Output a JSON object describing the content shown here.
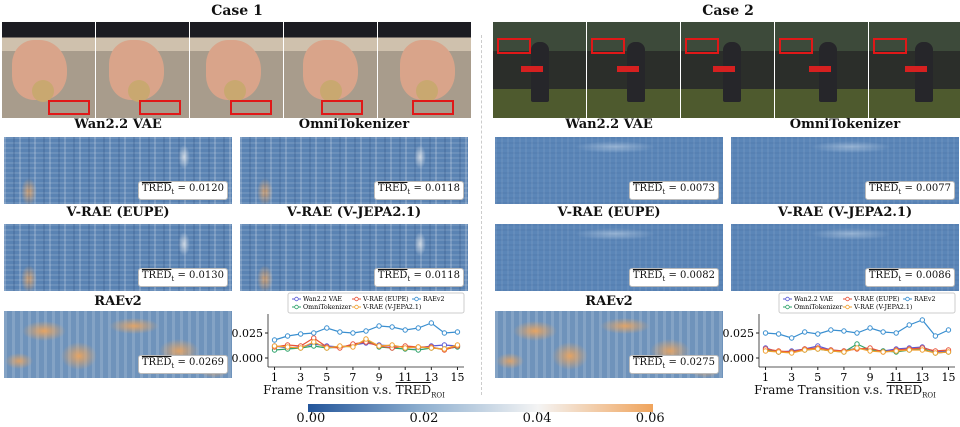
{
  "cases": [
    {
      "title": "Case 1",
      "panels": [
        {
          "title": "Wan2.2 VAE",
          "metric": "TRED",
          "metric_sub": "t",
          "score": "= 0.0120"
        },
        {
          "title": "OmniTokenizer",
          "metric": "TRED",
          "metric_sub": "t",
          "score": "= 0.0118"
        },
        {
          "title": "V-RAE (EUPE)",
          "metric": "TRED",
          "metric_sub": "t",
          "score": "= 0.0130"
        },
        {
          "title": "V-RAE (V-JEPA2.1)",
          "metric": "TRED",
          "metric_sub": "t",
          "score": "= 0.0118"
        },
        {
          "title": "RAEv2",
          "metric": "TRED",
          "metric_sub": "t",
          "score": "= 0.0269"
        }
      ]
    },
    {
      "title": "Case 2",
      "panels": [
        {
          "title": "Wan2.2 VAE",
          "metric": "TRED",
          "metric_sub": "t",
          "score": "= 0.0073"
        },
        {
          "title": "OmniTokenizer",
          "metric": "TRED",
          "metric_sub": "t",
          "score": "= 0.0077"
        },
        {
          "title": "V-RAE (EUPE)",
          "metric": "TRED",
          "metric_sub": "t",
          "score": "= 0.0082"
        },
        {
          "title": "V-RAE (V-JEPA2.1)",
          "metric": "TRED",
          "metric_sub": "t",
          "score": "= 0.0086"
        },
        {
          "title": "RAEv2",
          "metric": "TRED",
          "metric_sub": "t",
          "score": "= 0.0275"
        }
      ]
    }
  ],
  "chart_data": [
    {
      "type": "line",
      "x": [
        1,
        2,
        3,
        4,
        5,
        6,
        7,
        8,
        9,
        10,
        11,
        12,
        13,
        14,
        15
      ],
      "xlim": [
        0.5,
        15.5
      ],
      "xticks": [
        1,
        3,
        5,
        7,
        9,
        11,
        13,
        15
      ],
      "ylim": [
        -0.009,
        0.04
      ],
      "yticks": [
        {
          "value": 0,
          "label": "0.000"
        },
        {
          "value": 0.025,
          "label": "0.025"
        }
      ],
      "xlabel": "Frame Transition v.s.",
      "xlabel_metric": "TRED",
      "xlabel_sub": "ROI",
      "series": [
        {
          "name": "Wan2.2 VAE",
          "color": "#5b5bd6",
          "values": [
            0.012,
            0.01,
            0.011,
            0.014,
            0.012,
            0.011,
            0.013,
            0.015,
            0.013,
            0.012,
            0.011,
            0.01,
            0.012,
            0.013,
            0.012
          ]
        },
        {
          "name": "OmniTokenizer",
          "color": "#2ea36b",
          "values": [
            0.008,
            0.009,
            0.01,
            0.012,
            0.01,
            0.011,
            0.012,
            0.018,
            0.011,
            0.01,
            0.009,
            0.008,
            0.01,
            0.009,
            0.011
          ]
        },
        {
          "name": "V-RAE (EUPE)",
          "color": "#e8533a",
          "values": [
            0.011,
            0.013,
            0.012,
            0.02,
            0.011,
            0.01,
            0.014,
            0.016,
            0.012,
            0.01,
            0.012,
            0.011,
            0.011,
            0.008,
            0.012
          ]
        },
        {
          "name": "V-RAE (V-JEPA2.1)",
          "color": "#f0a030",
          "values": [
            0.012,
            0.011,
            0.01,
            0.016,
            0.01,
            0.012,
            0.011,
            0.019,
            0.012,
            0.013,
            0.01,
            0.011,
            0.01,
            0.009,
            0.013
          ]
        },
        {
          "name": "RAEv2",
          "color": "#3a8fd0",
          "values": [
            0.018,
            0.022,
            0.024,
            0.025,
            0.03,
            0.026,
            0.025,
            0.027,
            0.032,
            0.031,
            0.028,
            0.03,
            0.035,
            0.025,
            0.026
          ]
        }
      ]
    },
    {
      "type": "line",
      "x": [
        1,
        2,
        3,
        4,
        5,
        6,
        7,
        8,
        9,
        10,
        11,
        12,
        13,
        14,
        15
      ],
      "xlim": [
        0.5,
        15.5
      ],
      "xticks": [
        1,
        3,
        5,
        7,
        9,
        11,
        13,
        15
      ],
      "ylim": [
        -0.009,
        0.04
      ],
      "yticks": [
        {
          "value": 0,
          "label": "0.000"
        },
        {
          "value": 0.025,
          "label": "0.025"
        }
      ],
      "xlabel": "Frame Transition v.s.",
      "xlabel_metric": "TRED",
      "xlabel_sub": "ROI",
      "series": [
        {
          "name": "Wan2.2 VAE",
          "color": "#5b5bd6",
          "values": [
            0.01,
            0.006,
            0.007,
            0.009,
            0.012,
            0.008,
            0.007,
            0.01,
            0.008,
            0.007,
            0.009,
            0.01,
            0.011,
            0.006,
            0.007
          ]
        },
        {
          "name": "OmniTokenizer",
          "color": "#2ea36b",
          "values": [
            0.008,
            0.006,
            0.006,
            0.008,
            0.009,
            0.007,
            0.006,
            0.014,
            0.008,
            0.007,
            0.006,
            0.008,
            0.009,
            0.005,
            0.006
          ]
        },
        {
          "name": "V-RAE (EUPE)",
          "color": "#e8533a",
          "values": [
            0.009,
            0.007,
            0.006,
            0.009,
            0.01,
            0.008,
            0.007,
            0.009,
            0.01,
            0.006,
            0.008,
            0.009,
            0.01,
            0.007,
            0.008
          ]
        },
        {
          "name": "V-RAE (V-JEPA2.1)",
          "color": "#f0a030",
          "values": [
            0.007,
            0.006,
            0.005,
            0.008,
            0.009,
            0.007,
            0.006,
            0.01,
            0.007,
            0.006,
            0.007,
            0.008,
            0.008,
            0.005,
            0.006
          ]
        },
        {
          "name": "RAEv2",
          "color": "#3a8fd0",
          "values": [
            0.025,
            0.024,
            0.02,
            0.026,
            0.024,
            0.028,
            0.027,
            0.025,
            0.03,
            0.026,
            0.025,
            0.033,
            0.038,
            0.022,
            0.028
          ]
        }
      ]
    }
  ],
  "colorbar": {
    "lim": [
      -0.0005,
      0.0605
    ],
    "colors": [
      "#23559a",
      "#8fb0d0",
      "#f4f4f4",
      "#f0a45c"
    ],
    "ticks": [
      {
        "value": 0,
        "label": "0.00"
      },
      {
        "value": 0.02,
        "label": "0.02"
      },
      {
        "value": 0.04,
        "label": "0.04"
      },
      {
        "value": 0.06,
        "label": "0.06"
      }
    ]
  }
}
